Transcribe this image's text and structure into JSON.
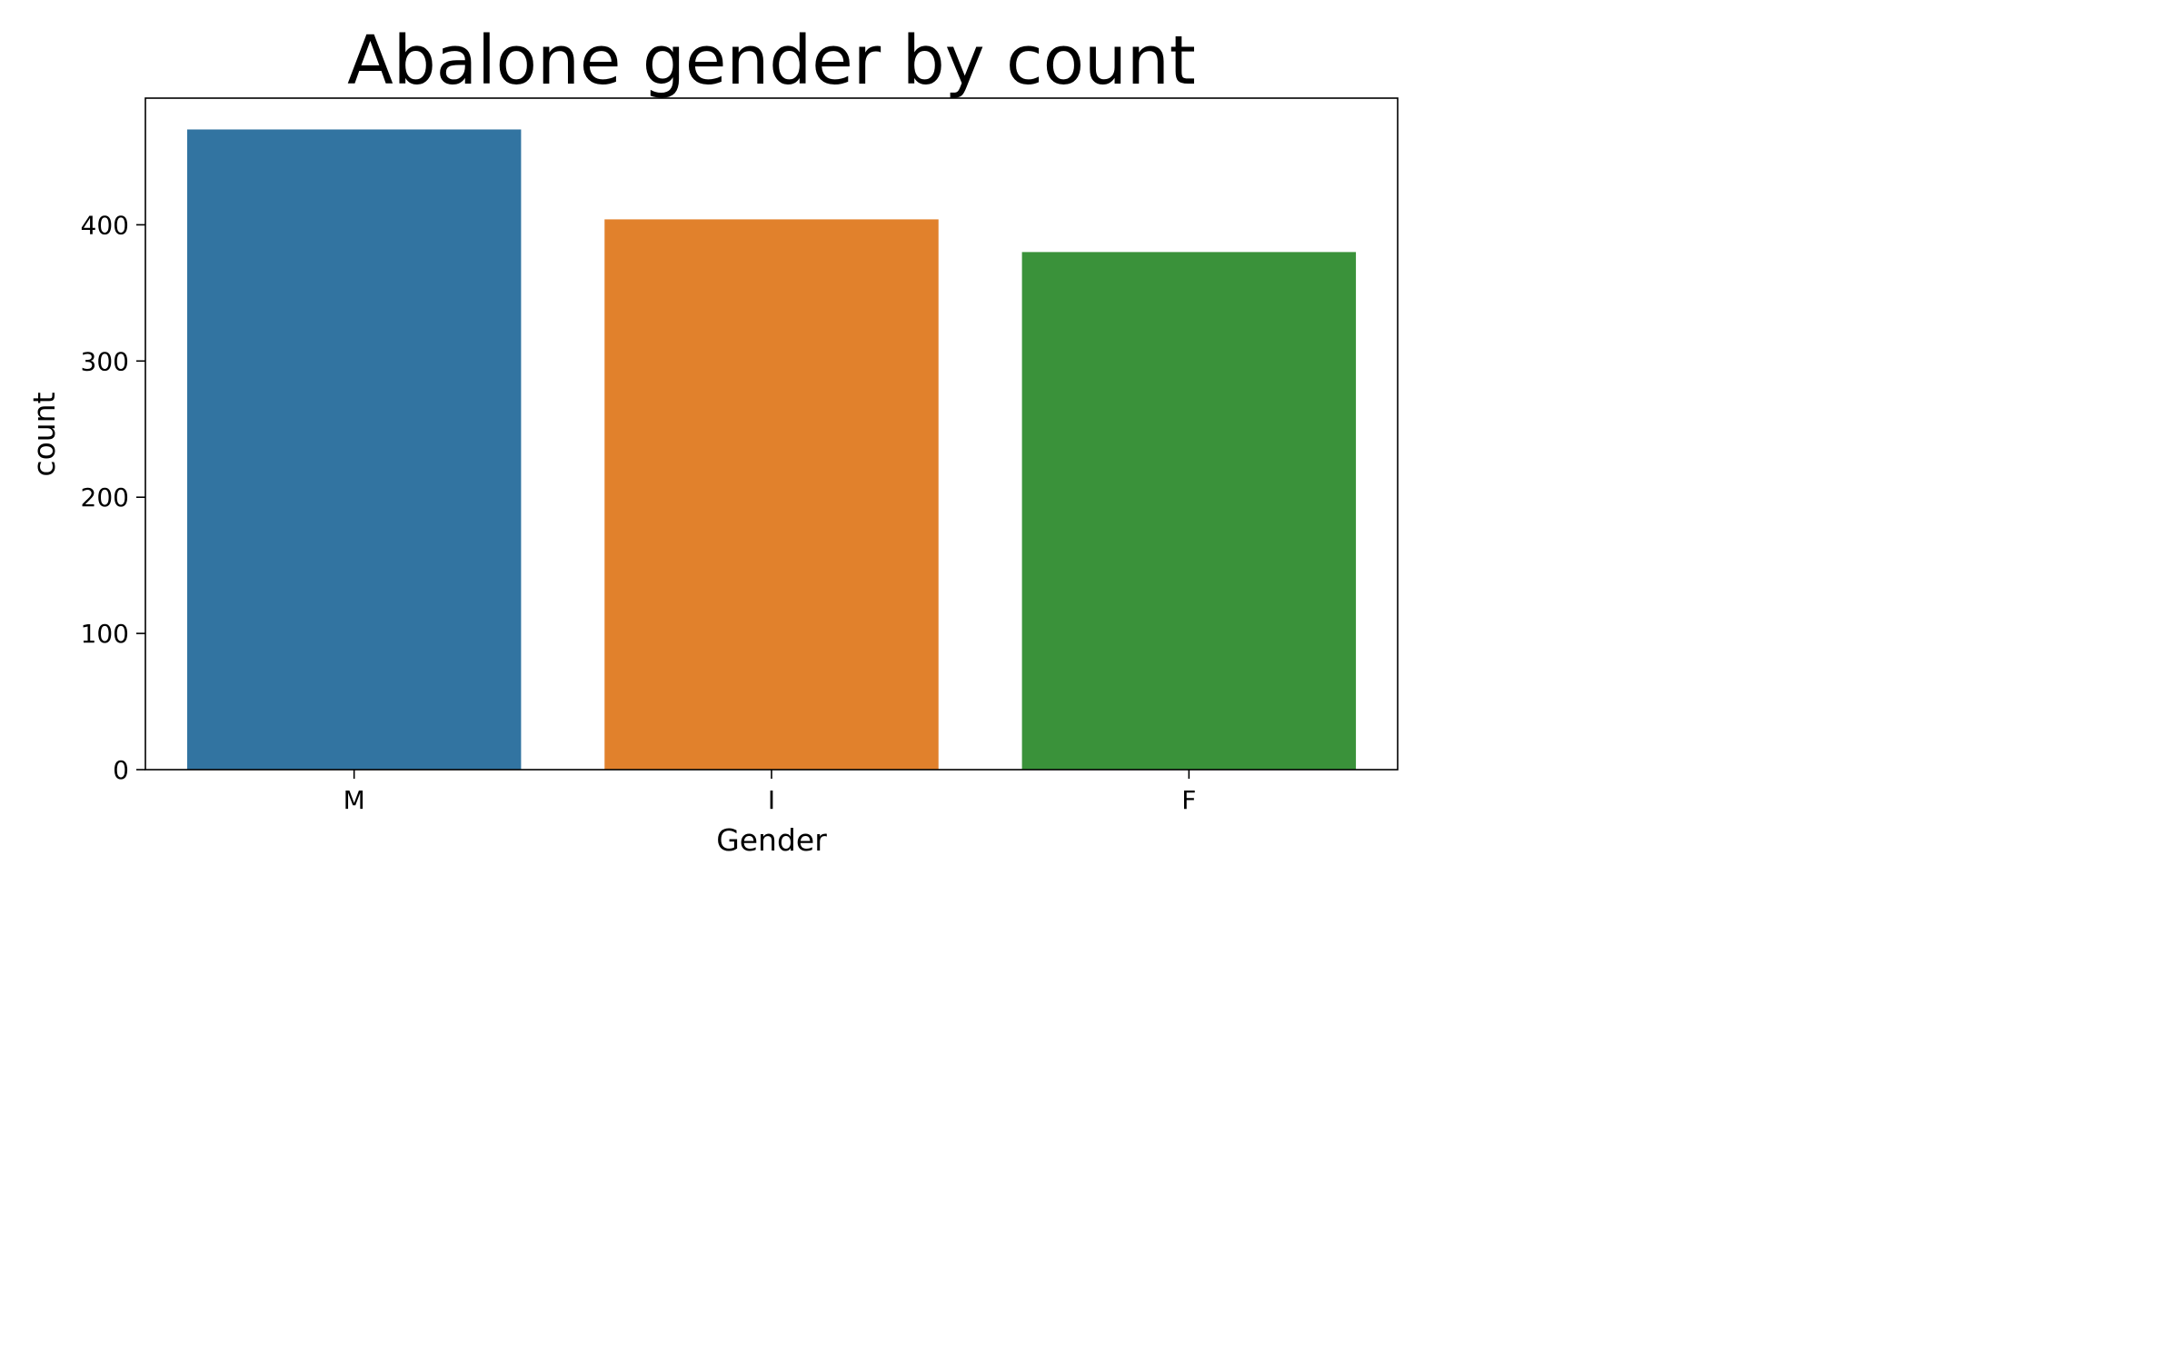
{
  "chart_data": {
    "type": "bar",
    "title": "Abalone gender by count",
    "xlabel": "Gender",
    "ylabel": "count",
    "categories": [
      "M",
      "I",
      "F"
    ],
    "values": [
      470,
      404,
      380
    ],
    "colors": [
      "#3274a1",
      "#e1812c",
      "#3a923a"
    ],
    "ylim": [
      0,
      493
    ],
    "yticks": [
      0,
      100,
      200,
      300,
      400
    ],
    "grid": false,
    "legend": "none"
  }
}
